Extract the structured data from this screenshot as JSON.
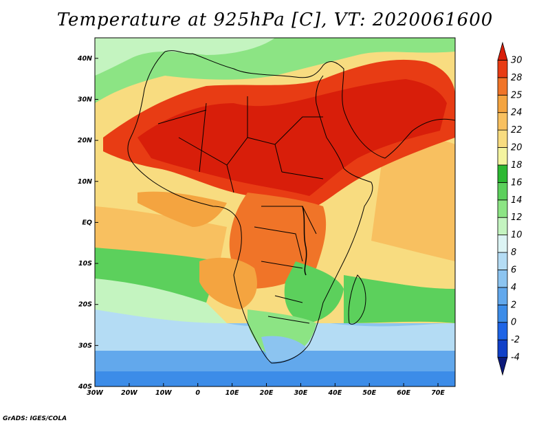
{
  "title": "Temperature at 925hPa [C], VT: 2020061600",
  "credit": "GrADS: IGES/COLA",
  "map": {
    "projection": "lat-lon",
    "region": "Africa",
    "lon_range": [
      -30,
      75
    ],
    "lat_range": [
      -40,
      45
    ],
    "lon_tick_labels": [
      "30W",
      "20W",
      "10W",
      "0",
      "10E",
      "20E",
      "30E",
      "40E",
      "50E",
      "60E",
      "70E"
    ],
    "lon_ticks": [
      -30,
      -20,
      -10,
      0,
      10,
      20,
      30,
      40,
      50,
      60,
      70
    ],
    "lat_tick_labels": [
      "40S",
      "30S",
      "20S",
      "10S",
      "EQ",
      "10N",
      "20N",
      "30N",
      "40N"
    ],
    "lat_ticks": [
      -40,
      -30,
      -20,
      -10,
      0,
      10,
      20,
      30,
      40
    ]
  },
  "colorbar": {
    "levels": [
      "-4",
      "-2",
      "0",
      "2",
      "4",
      "6",
      "8",
      "10",
      "12",
      "14",
      "16",
      "18",
      "20",
      "22",
      "24",
      "25",
      "28",
      "30"
    ],
    "colors": [
      "#0c1a7a",
      "#1040c8",
      "#1e64e6",
      "#3c8ce8",
      "#62a8ec",
      "#8cc4f0",
      "#b4dcf4",
      "#dcf4f4",
      "#c4f4c0",
      "#8ce484",
      "#5cd05c",
      "#2cb832",
      "#f4f4a0",
      "#f8dc80",
      "#f8c060",
      "#f4a440",
      "#f07428",
      "#e83c14",
      "#d81e0a"
    ]
  }
}
